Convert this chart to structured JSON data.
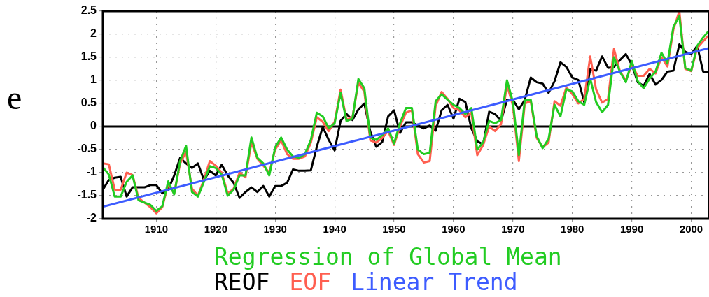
{
  "chart_data": {
    "type": "line",
    "annotations": [
      "e"
    ],
    "legend": "bottom",
    "grid": true,
    "marker": "none",
    "line_style": "solid",
    "xlim": [
      1901,
      2003
    ],
    "xticks": [
      1910,
      1920,
      1930,
      1940,
      1950,
      1960,
      1970,
      1980,
      1990,
      2000
    ],
    "ylim": [
      -2,
      2.5
    ],
    "yticks": [
      -2,
      -1.5,
      -1,
      -0.5,
      0,
      0.5,
      1,
      1.5,
      2,
      2.5
    ],
    "ref_lines": [
      {
        "axis": "y",
        "value": 0,
        "color": "#000000"
      }
    ],
    "x": [
      1901,
      1902,
      1903,
      1904,
      1905,
      1906,
      1907,
      1908,
      1909,
      1910,
      1911,
      1912,
      1913,
      1914,
      1915,
      1916,
      1917,
      1918,
      1919,
      1920,
      1921,
      1922,
      1923,
      1924,
      1925,
      1926,
      1927,
      1928,
      1929,
      1930,
      1931,
      1932,
      1933,
      1934,
      1935,
      1936,
      1937,
      1938,
      1939,
      1940,
      1941,
      1942,
      1943,
      1944,
      1945,
      1946,
      1947,
      1948,
      1949,
      1950,
      1951,
      1952,
      1953,
      1954,
      1955,
      1956,
      1957,
      1958,
      1959,
      1960,
      1961,
      1962,
      1963,
      1964,
      1965,
      1966,
      1967,
      1968,
      1969,
      1970,
      1971,
      1972,
      1973,
      1974,
      1975,
      1976,
      1977,
      1978,
      1979,
      1980,
      1981,
      1982,
      1983,
      1984,
      1985,
      1986,
      1987,
      1988,
      1989,
      1990,
      1991,
      1992,
      1993,
      1994,
      1995,
      1996,
      1997,
      1998,
      1999,
      2000,
      2001,
      2002,
      2003
    ],
    "series": [
      {
        "name": "Regression of Global Mean",
        "color": "#22cc22",
        "values": [
          -0.88,
          -1.04,
          -1.52,
          -1.52,
          -1.2,
          -1.06,
          -1.6,
          -1.65,
          -1.7,
          -1.83,
          -1.73,
          -1.19,
          -1.47,
          -0.75,
          -0.42,
          -1.42,
          -1.52,
          -1.2,
          -0.86,
          -0.9,
          -1.04,
          -1.5,
          -1.37,
          -1.06,
          -1.06,
          -0.24,
          -0.68,
          -0.8,
          -1.06,
          -0.45,
          -0.24,
          -0.5,
          -0.65,
          -0.68,
          -0.6,
          -0.29,
          0.3,
          0.22,
          -0.04,
          0.07,
          0.73,
          0.12,
          0.17,
          1.03,
          0.83,
          -0.24,
          -0.29,
          -0.19,
          -0.04,
          -0.37,
          0.07,
          0.4,
          0.4,
          -0.5,
          -0.6,
          -0.57,
          0.55,
          0.7,
          0.58,
          0.47,
          0.4,
          0.27,
          0.4,
          -0.5,
          -0.34,
          0.12,
          0.07,
          0.14,
          1.0,
          0.53,
          -0.62,
          0.58,
          0.58,
          -0.21,
          -0.47,
          -0.27,
          0.47,
          0.22,
          0.81,
          0.76,
          0.55,
          0.47,
          1.04,
          0.53,
          0.31,
          0.47,
          1.5,
          1.19,
          0.96,
          1.42,
          0.98,
          0.83,
          1.04,
          1.19,
          1.6,
          1.37,
          2.16,
          2.39,
          1.27,
          1.21,
          1.75,
          1.93,
          2.08
        ]
      },
      {
        "name": "REOF",
        "color": "#000000",
        "values": [
          -1.37,
          -1.16,
          -1.11,
          -1.09,
          -1.52,
          -1.32,
          -1.32,
          -1.32,
          -1.27,
          -1.27,
          -1.45,
          -1.37,
          -1.06,
          -0.68,
          -0.8,
          -0.9,
          -0.8,
          -1.16,
          -0.96,
          -1.06,
          -0.83,
          -1.06,
          -1.22,
          -1.55,
          -1.42,
          -1.32,
          -1.42,
          -1.29,
          -1.52,
          -1.29,
          -1.29,
          -1.22,
          -0.93,
          -0.96,
          -0.96,
          -0.95,
          -0.44,
          -0.01,
          -0.29,
          -0.52,
          0.12,
          0.27,
          0.14,
          0.37,
          0.5,
          -0.11,
          -0.44,
          -0.34,
          0.22,
          0.35,
          -0.14,
          0.09,
          0.09,
          0.02,
          -0.04,
          0.02,
          -0.09,
          0.35,
          0.47,
          0.17,
          0.6,
          0.53,
          -0.04,
          -0.32,
          -0.39,
          0.32,
          0.27,
          0.12,
          0.58,
          0.58,
          0.37,
          0.58,
          1.06,
          0.96,
          0.93,
          0.73,
          0.98,
          1.39,
          1.29,
          1.06,
          1.01,
          0.53,
          1.24,
          1.21,
          1.52,
          1.27,
          1.29,
          1.44,
          1.57,
          1.34,
          0.96,
          0.88,
          1.14,
          0.91,
          1.01,
          1.19,
          1.21,
          1.78,
          1.62,
          1.57,
          1.75,
          1.19,
          1.19
        ]
      },
      {
        "name": "EOF",
        "color": "#ff5f50",
        "values": [
          -0.8,
          -0.82,
          -1.37,
          -1.37,
          -1.0,
          -1.05,
          -1.55,
          -1.65,
          -1.75,
          -1.88,
          -1.75,
          -1.25,
          -1.45,
          -0.8,
          -0.55,
          -1.35,
          -1.5,
          -1.15,
          -0.75,
          -0.85,
          -1.0,
          -1.45,
          -1.35,
          -1.0,
          -1.1,
          -0.35,
          -0.7,
          -0.85,
          -1.0,
          -0.5,
          -0.3,
          -0.6,
          -0.7,
          -0.7,
          -0.65,
          -0.35,
          0.2,
          0.1,
          -0.1,
          0.1,
          0.8,
          0.15,
          0.2,
          0.95,
          0.75,
          -0.3,
          -0.35,
          -0.25,
          -0.1,
          -0.4,
          0.0,
          0.3,
          0.35,
          -0.6,
          -0.78,
          -0.75,
          0.45,
          0.75,
          0.6,
          0.4,
          0.35,
          0.2,
          0.3,
          -0.62,
          -0.4,
          0.0,
          -0.1,
          0.05,
          0.9,
          0.45,
          -0.75,
          0.5,
          0.55,
          -0.25,
          -0.45,
          -0.35,
          0.55,
          0.45,
          0.85,
          0.7,
          0.5,
          0.6,
          1.52,
          0.8,
          0.52,
          0.6,
          1.68,
          1.2,
          1.0,
          1.33,
          1.1,
          1.1,
          1.25,
          1.15,
          1.5,
          1.3,
          2.1,
          2.5,
          1.25,
          1.2,
          1.7,
          1.85,
          1.98
        ]
      },
      {
        "name": "Linear Trend",
        "color": "#3d5cff",
        "x": [
          1901,
          2003
        ],
        "values": [
          -1.74,
          1.7
        ]
      }
    ]
  }
}
